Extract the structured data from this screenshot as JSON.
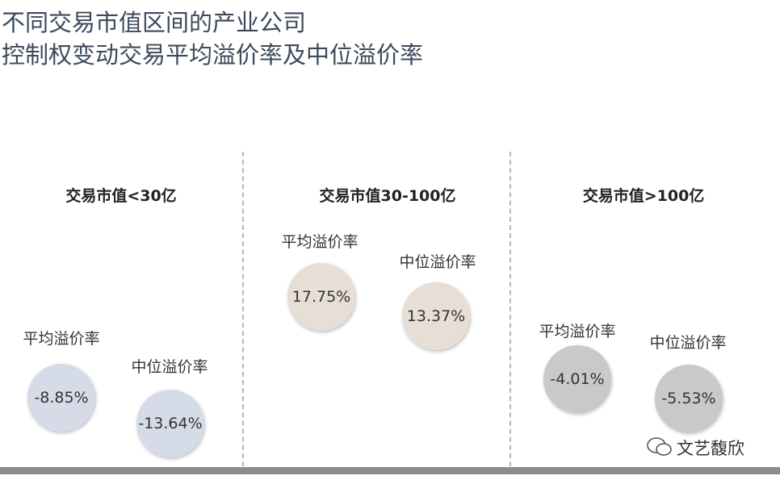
{
  "header": {
    "title_lines": [
      "不同交易市值区间的产业公司",
      "控制权变动交易平均溢价率及中位溢价率"
    ]
  },
  "panels": [
    {
      "heading": "交易市值<30亿",
      "items": [
        {
          "label": "平均溢价率",
          "value": "-8.85%"
        },
        {
          "label": "中位溢价率",
          "value": "-13.64%"
        }
      ]
    },
    {
      "heading": "交易市值30-100亿",
      "items": [
        {
          "label": "平均溢价率",
          "value": "17.75%"
        },
        {
          "label": "中位溢价率",
          "value": "13.37%"
        }
      ]
    },
    {
      "heading": "交易市值>100亿",
      "items": [
        {
          "label": "平均溢价率",
          "value": "-4.01%"
        },
        {
          "label": "中位溢价率",
          "value": "-5.53%"
        }
      ]
    }
  ],
  "watermark": "文艺馥欣"
}
